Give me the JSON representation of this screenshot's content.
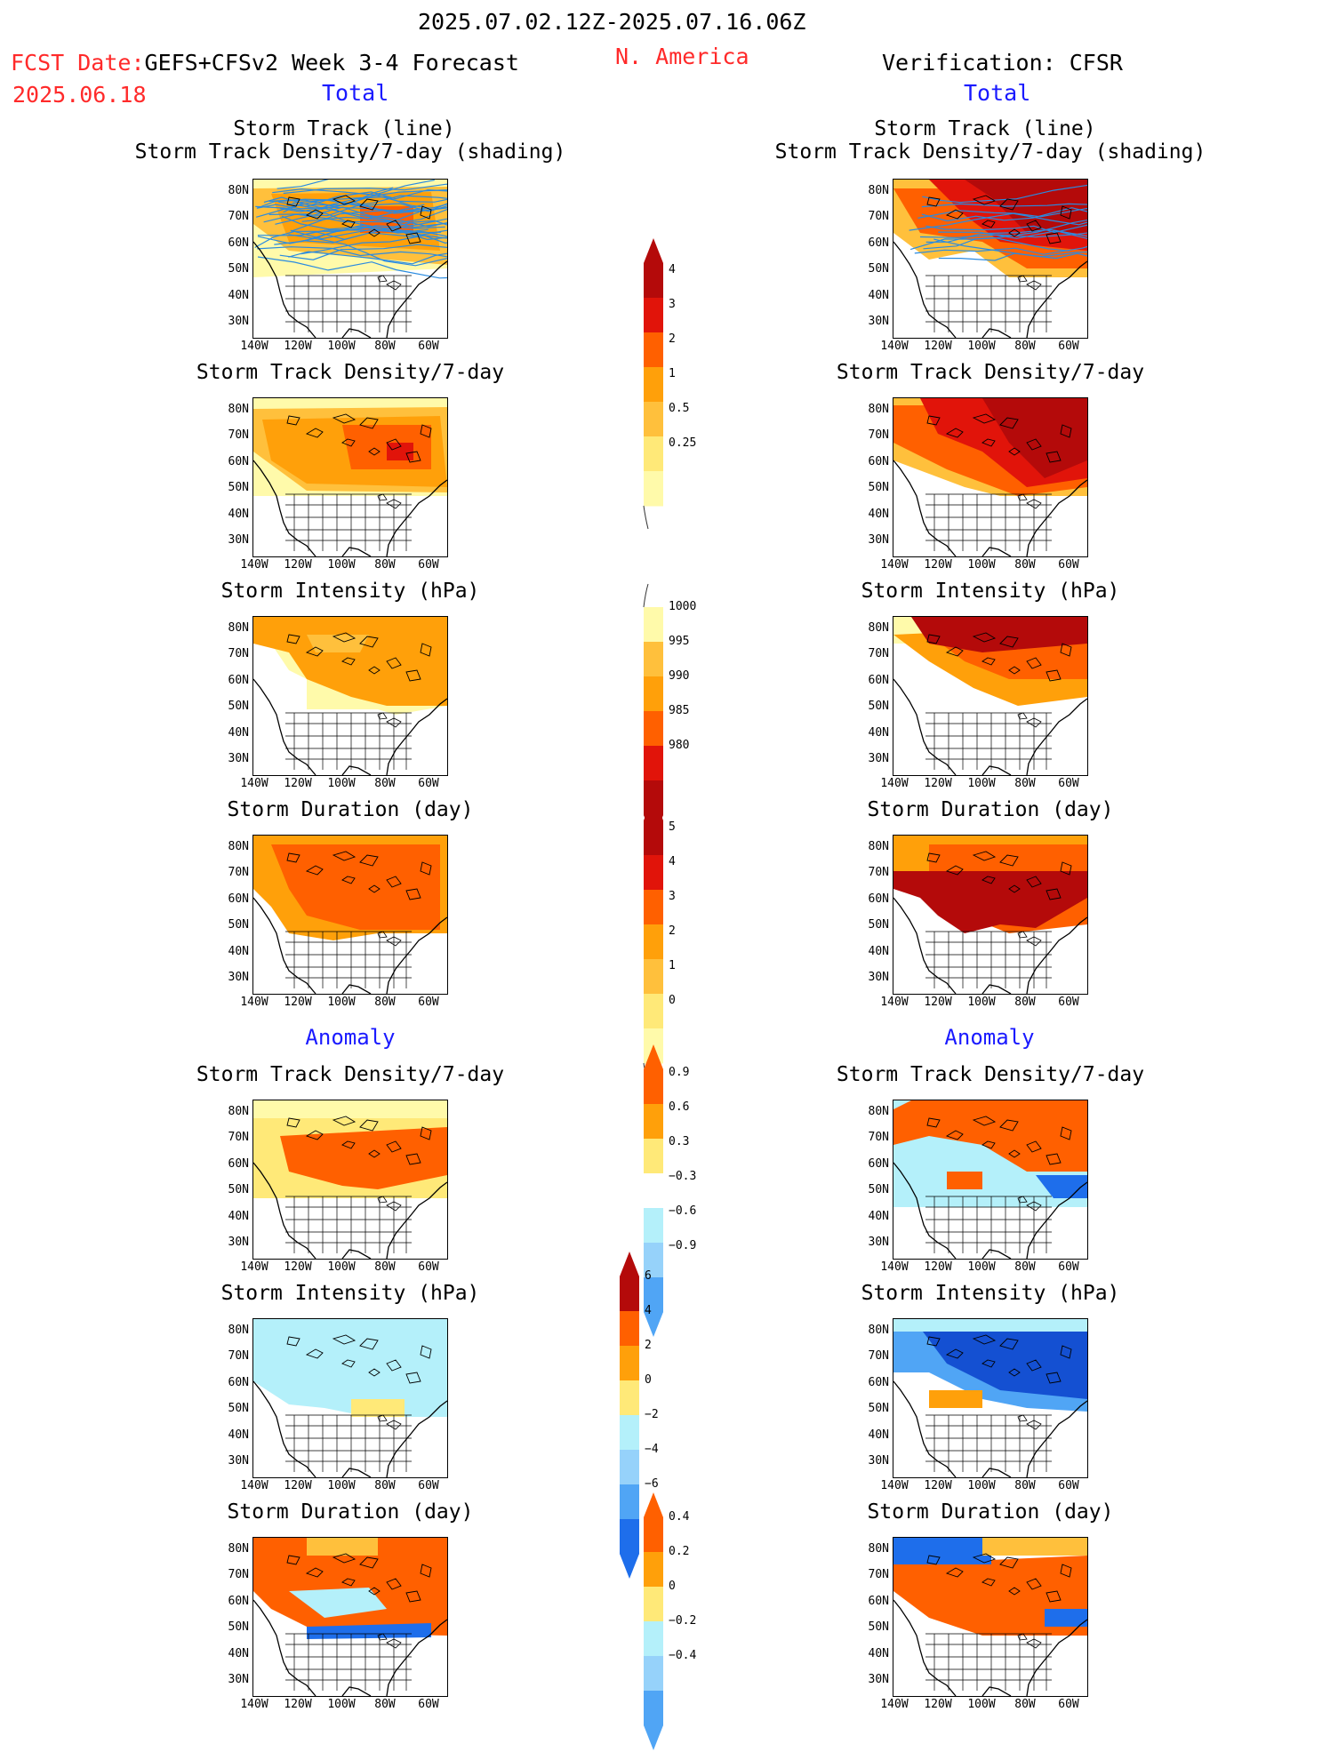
{
  "header": {
    "period": "2025.07.02.12Z-2025.07.16.06Z",
    "fcst_prefix": "FCST Date:",
    "fcst_model": "GEFS+CFSv2 Week 3-4 Forecast",
    "fcst_date": "2025.06.18",
    "region": "N. America",
    "verification": "Verification: CFSR"
  },
  "sections": {
    "total": "Total",
    "anomaly": "Anomaly"
  },
  "titles": {
    "track_line": "Storm Track (line)",
    "track_shading": "Storm Track Density/7-day (shading)",
    "density": "Storm Track Density/7-day",
    "intensity": "Storm Intensity (hPa)",
    "duration": "Storm Duration (day)"
  },
  "axes": {
    "lat": [
      "80N",
      "70N",
      "60N",
      "50N",
      "40N",
      "30N"
    ],
    "lon": [
      "140W",
      "120W",
      "100W",
      "80W",
      "60W"
    ]
  },
  "colors": {
    "c1": "#fffaaa",
    "c2": "#ffe978",
    "c3": "#ffc03c",
    "c4": "#ffa00a",
    "c5": "#ff6000",
    "c6": "#e1140a",
    "c7": "#b40a0a",
    "c8": "#8c0000",
    "b1": "#b4f0fa",
    "b2": "#96d2fa",
    "b3": "#50a5f5",
    "b4": "#1e6eeb",
    "b5": "#1450d2",
    "track": "#2a8be0"
  },
  "colorbars": {
    "density": [
      "4",
      "3",
      "2",
      "1",
      "0.5",
      "0.25"
    ],
    "intensity": [
      "1000",
      "995",
      "990",
      "985",
      "980"
    ],
    "duration": [
      "5",
      "4",
      "3",
      "2",
      "1",
      "0"
    ],
    "anom_density": [
      "0.9",
      "0.6",
      "0.3",
      "−0.3",
      "−0.6",
      "−0.9"
    ],
    "anom_intensity": [
      "6",
      "4",
      "2",
      "0",
      "−2",
      "−4",
      "−6"
    ],
    "anom_duration": [
      "0.4",
      "0.2",
      "0",
      "−0.2",
      "−0.4"
    ]
  }
}
